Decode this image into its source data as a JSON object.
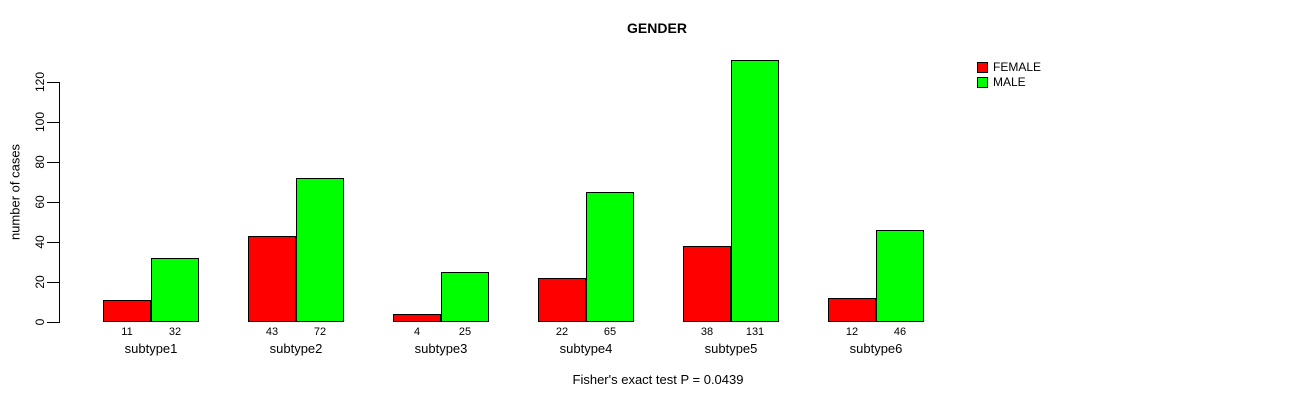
{
  "chart_data": {
    "type": "bar",
    "title": "GENDER",
    "ylabel": "number of cases",
    "xlabel": "",
    "annotation": "Fisher's exact test P = 0.0439",
    "categories": [
      "subtype1",
      "subtype2",
      "subtype3",
      "subtype4",
      "subtype5",
      "subtype6"
    ],
    "series": [
      {
        "name": "FEMALE",
        "color": "#ff0000",
        "values": [
          11,
          43,
          4,
          22,
          38,
          12
        ]
      },
      {
        "name": "MALE",
        "color": "#00ff00",
        "values": [
          32,
          72,
          25,
          65,
          131,
          46
        ]
      }
    ],
    "yticks": [
      0,
      20,
      40,
      60,
      80,
      100,
      120
    ],
    "ylim": [
      0,
      120
    ],
    "bar_value_labels_shown": true,
    "legend_position": "top-right",
    "grid": false,
    "background_color": "#ffffff",
    "axis_color": "#000000"
  }
}
